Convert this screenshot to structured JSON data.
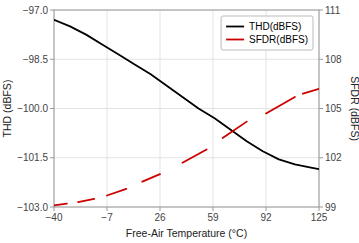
{
  "chart_data": {
    "type": "line",
    "title": "",
    "x_label": "Free-Air Temperature (°C)",
    "y_label": "THD (dBFS)",
    "y2_label": "SFDR (dBFS)",
    "xlim": [
      -40,
      125
    ],
    "xticks": [
      {
        "value": -40,
        "label": "−40"
      },
      {
        "value": -7,
        "label": "−7"
      },
      26,
      59,
      92,
      125
    ],
    "ylim": [
      -103,
      -97
    ],
    "yticks": [
      {
        "value": -103,
        "label": "−103.0"
      },
      {
        "value": -101.5,
        "label": "−101.5"
      },
      {
        "value": -100,
        "label": "−100.0"
      },
      {
        "value": -98.5,
        "label": "−98.5"
      },
      {
        "value": -97,
        "label": "−97.0"
      }
    ],
    "y2lim": [
      99,
      111
    ],
    "y2ticks": [
      99,
      102,
      105,
      108,
      111
    ],
    "grid": true,
    "legend": "upper right",
    "series": [
      {
        "name": "THD(dBFS)",
        "color": "#000000",
        "x": [
          -40,
          -30,
          -20,
          -10,
          0,
          10,
          20,
          30,
          40,
          50,
          60,
          70,
          80,
          90,
          100,
          110,
          120,
          125
        ],
        "values": [
          -97.3,
          -97.5,
          -97.75,
          -98.05,
          -98.35,
          -98.65,
          -98.95,
          -99.3,
          -99.65,
          -100.0,
          -100.3,
          -100.65,
          -101.0,
          -101.3,
          -101.55,
          -101.7,
          -101.8,
          -101.85
        ]
      },
      {
        "name": "SFDR(dBFS)",
        "color": "#cc0000",
        "axis": "y2",
        "x": [
          -40,
          -32,
          null,
          -25,
          -15,
          null,
          -7,
          5,
          null,
          15,
          26,
          null,
          40,
          55,
          null,
          65,
          80,
          null,
          92,
          110,
          null,
          115,
          125
        ],
        "values": [
          99.1,
          99.2,
          null,
          99.3,
          99.5,
          null,
          99.7,
          100.1,
          null,
          100.55,
          101.0,
          null,
          101.7,
          102.5,
          null,
          103.2,
          104.2,
          null,
          104.7,
          105.7,
          null,
          105.9,
          106.2
        ]
      }
    ]
  }
}
